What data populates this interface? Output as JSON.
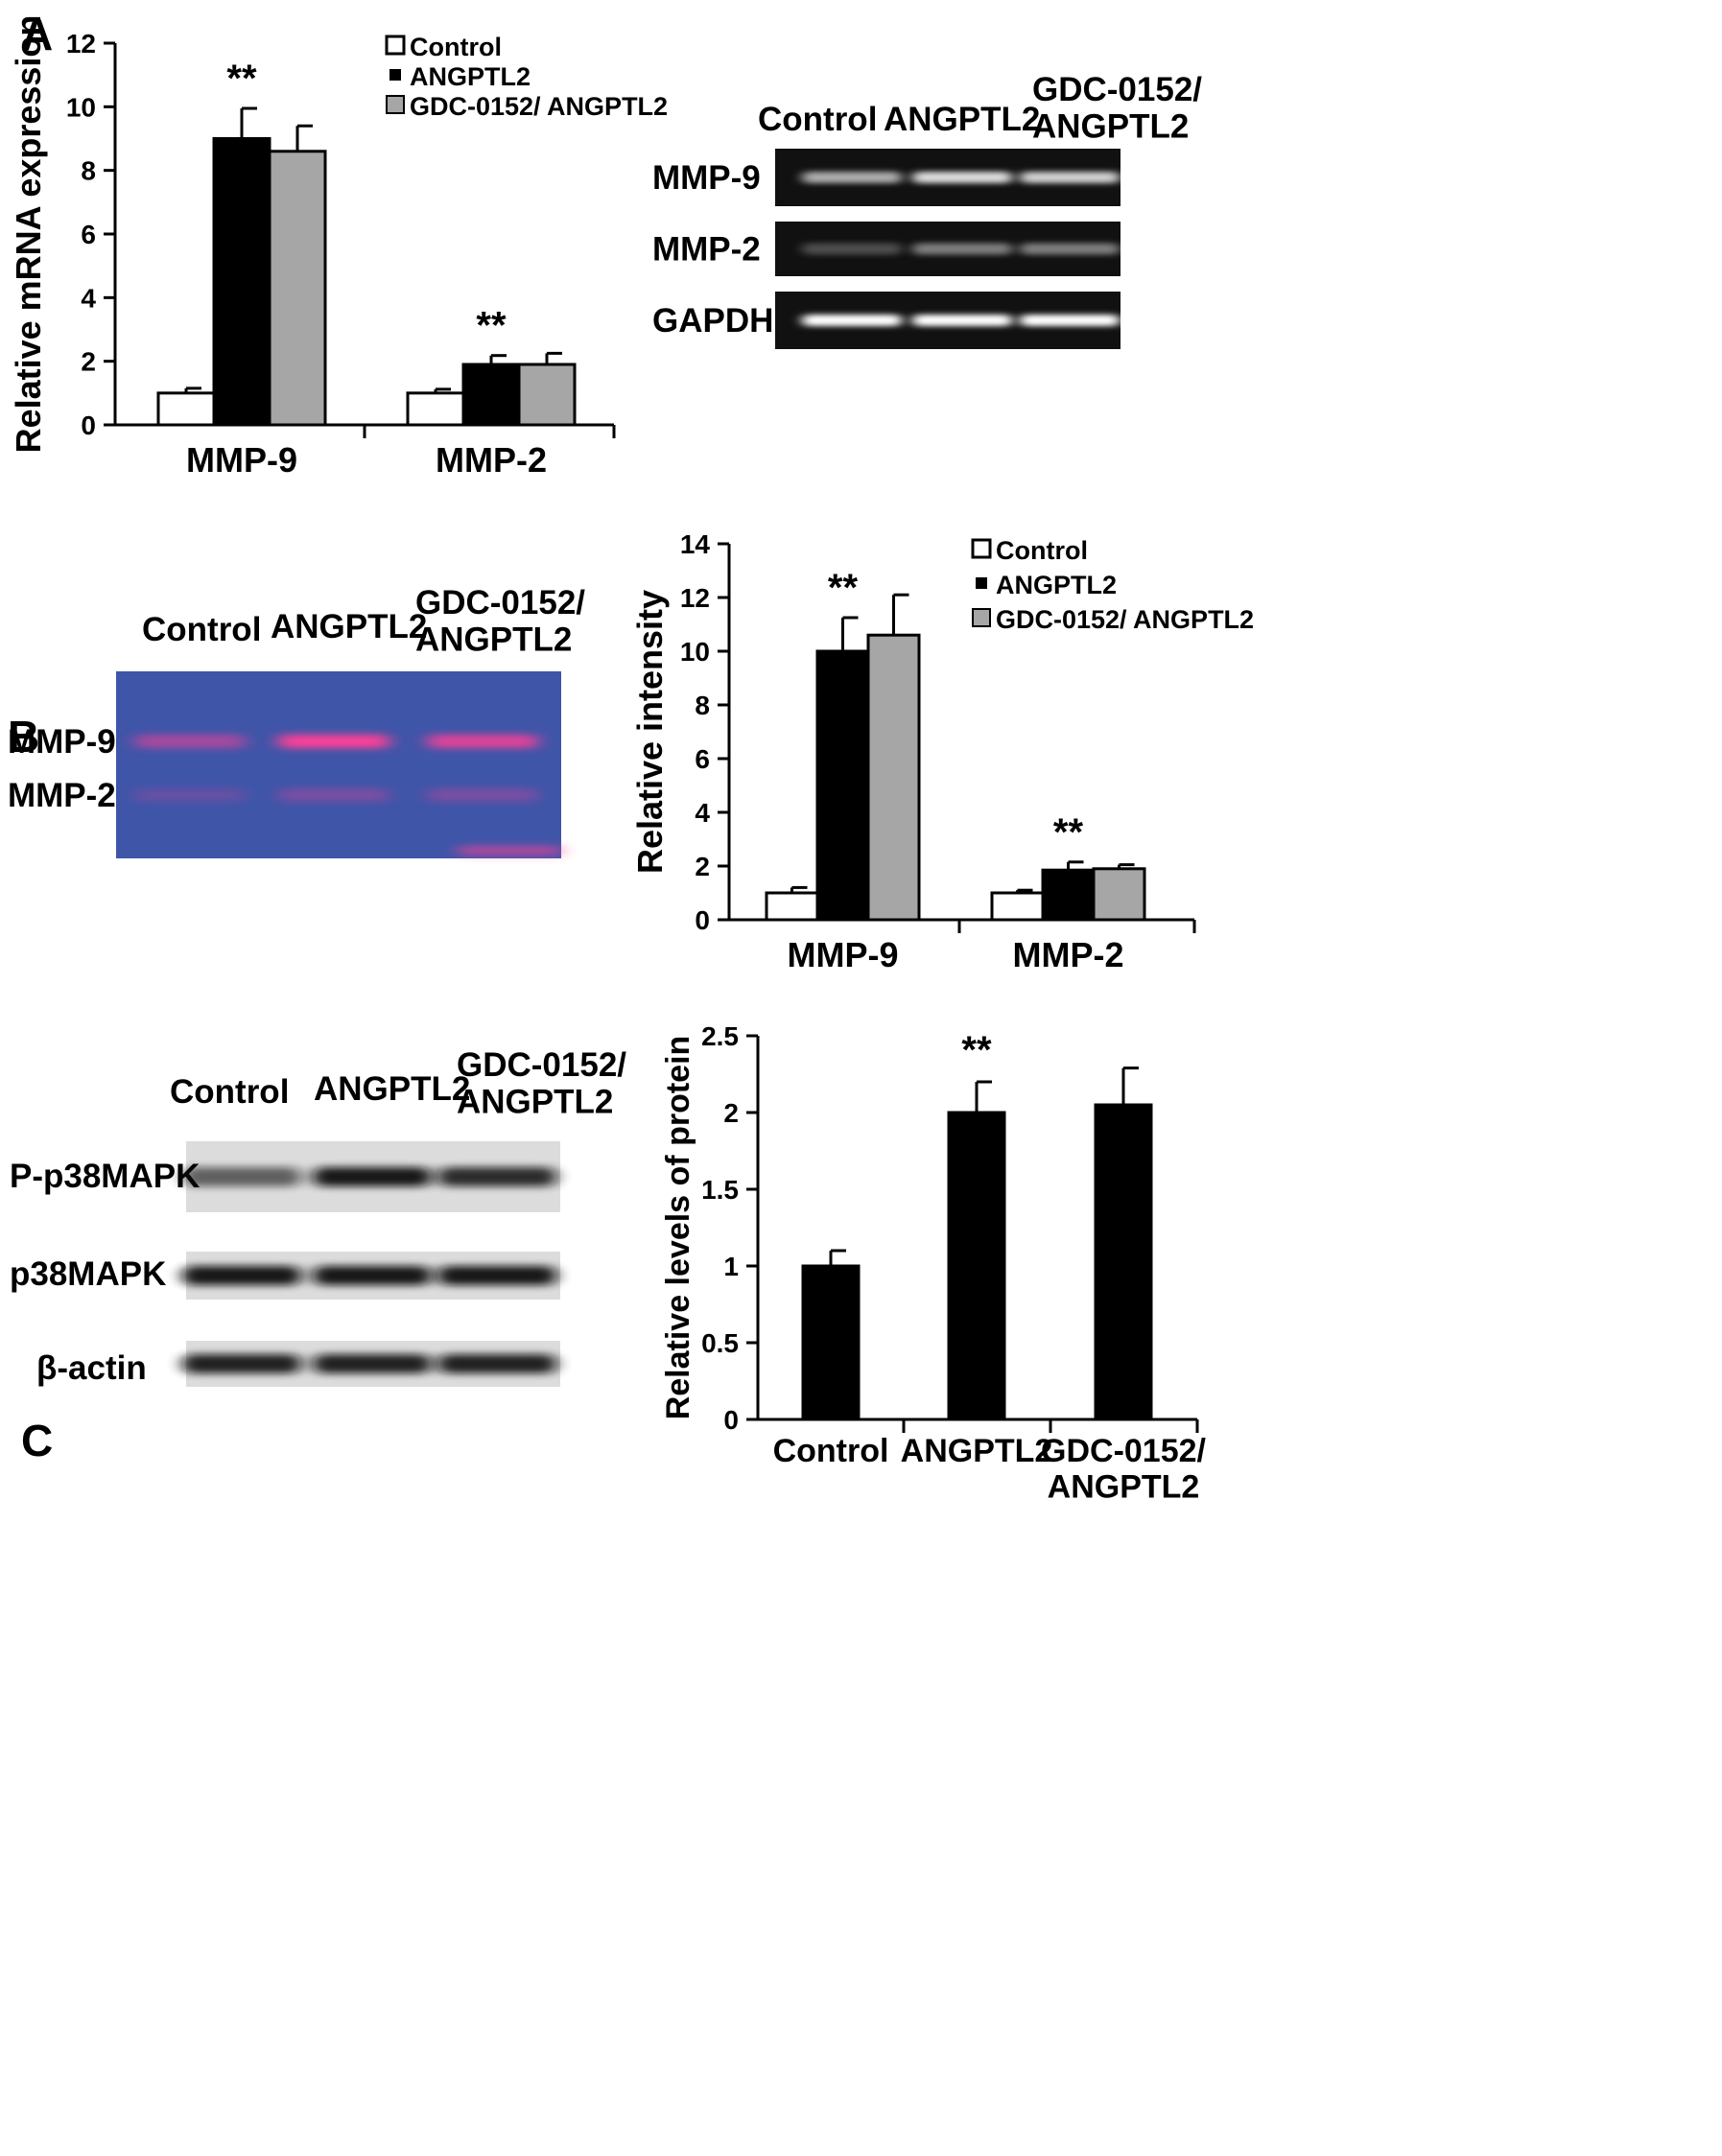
{
  "panels": [
    {
      "letter": "A"
    },
    {
      "letter": "B"
    },
    {
      "letter": "C"
    }
  ],
  "colors": {
    "control": "#ffffff",
    "angptl2": "#000000",
    "gdc": "#a6a6a6",
    "outline": "#000000",
    "gel_bg": "#111111",
    "zymo_bg": "#3f55a8",
    "zymo_band": "#ff3f96",
    "western_bg": "#dcdcdc"
  },
  "chart_data": [
    {
      "panel": "A",
      "type": "bar",
      "title": "",
      "ylabel": "Relative mRNA expression",
      "xlabel": "",
      "ylim": [
        0,
        12
      ],
      "yticks": [
        0,
        2,
        4,
        6,
        8,
        10,
        12
      ],
      "categories": [
        "MMP-9",
        "MMP-2"
      ],
      "series": [
        {
          "name": "Control",
          "values": [
            1.0,
            1.0
          ],
          "errors": [
            0.15,
            0.12
          ]
        },
        {
          "name": "ANGPTL2",
          "values": [
            9.0,
            1.9
          ],
          "errors": [
            0.95,
            0.28
          ]
        },
        {
          "name": "GDC-0152/ ANGPTL2",
          "values": [
            8.6,
            1.9
          ],
          "errors": [
            0.8,
            0.35
          ]
        }
      ],
      "annotations": [
        {
          "category": 0,
          "series": 1,
          "text": "**"
        },
        {
          "category": 1,
          "series": 1,
          "text": "**"
        }
      ],
      "legend": "top-right"
    },
    {
      "panel": "B",
      "type": "bar",
      "title": "",
      "ylabel": "Relative intensity",
      "xlabel": "",
      "ylim": [
        0,
        14
      ],
      "yticks": [
        0,
        2,
        4,
        6,
        8,
        10,
        12,
        14
      ],
      "categories": [
        "MMP-9",
        "MMP-2"
      ],
      "series": [
        {
          "name": "Control",
          "values": [
            1.0,
            1.0
          ],
          "errors": [
            0.2,
            0.1
          ]
        },
        {
          "name": "ANGPTL2",
          "values": [
            10.0,
            1.85
          ],
          "errors": [
            1.25,
            0.3
          ]
        },
        {
          "name": "GDC-0152/ ANGPTL2",
          "values": [
            10.6,
            1.9
          ],
          "errors": [
            1.5,
            0.15
          ]
        }
      ],
      "annotations": [
        {
          "category": 0,
          "series": 1,
          "text": "**"
        },
        {
          "category": 1,
          "series": 1,
          "text": "**"
        }
      ],
      "legend": "top-right"
    },
    {
      "panel": "C",
      "type": "bar",
      "title": "",
      "ylabel": "Relative levels of protein",
      "xlabel": "",
      "ylim": [
        0,
        2.5
      ],
      "yticks": [
        "0",
        "0.5",
        "1",
        "1.5",
        "2",
        "2.5"
      ],
      "categories": [
        "Control",
        "ANGPTL2",
        "GDC-0152/\nANGPTL2"
      ],
      "values": [
        1.0,
        2.0,
        2.05
      ],
      "errors": [
        0.1,
        0.2,
        0.24
      ],
      "annotations": [
        {
          "category": 1,
          "text": "**"
        }
      ]
    }
  ],
  "gels": [
    {
      "panel": "A",
      "kind": "rt-pcr",
      "lane_labels": [
        "Control",
        "ANGPTL2",
        "GDC-0152/\nANGPTL2"
      ],
      "rows": [
        {
          "label": "MMP-9",
          "intensity": [
            0.65,
            0.85,
            0.8
          ]
        },
        {
          "label": "MMP-2",
          "intensity": [
            0.25,
            0.45,
            0.45
          ]
        },
        {
          "label": "GAPDH",
          "intensity": [
            1.0,
            1.0,
            1.0
          ]
        }
      ]
    },
    {
      "panel": "B",
      "kind": "zymography",
      "lane_labels": [
        "Control",
        "ANGPTL2",
        "GDC-0152/\nANGPTL2"
      ],
      "rows": [
        {
          "label": "MMP-9",
          "intensity": [
            0.55,
            1.0,
            0.85
          ]
        },
        {
          "label": "MMP-2",
          "intensity": [
            0.2,
            0.3,
            0.3
          ]
        }
      ]
    },
    {
      "panel": "C",
      "kind": "western",
      "lane_labels": [
        "Control",
        "ANGPTL2",
        "GDC-0152/\nANGPTL2"
      ],
      "rows": [
        {
          "label": "P-p38MAPK",
          "intensity": [
            0.6,
            0.95,
            0.85
          ]
        },
        {
          "label": "p38MAPK",
          "intensity": [
            0.95,
            0.95,
            0.95
          ]
        },
        {
          "label": "β-actin",
          "intensity": [
            0.9,
            0.9,
            0.9
          ]
        }
      ]
    }
  ]
}
